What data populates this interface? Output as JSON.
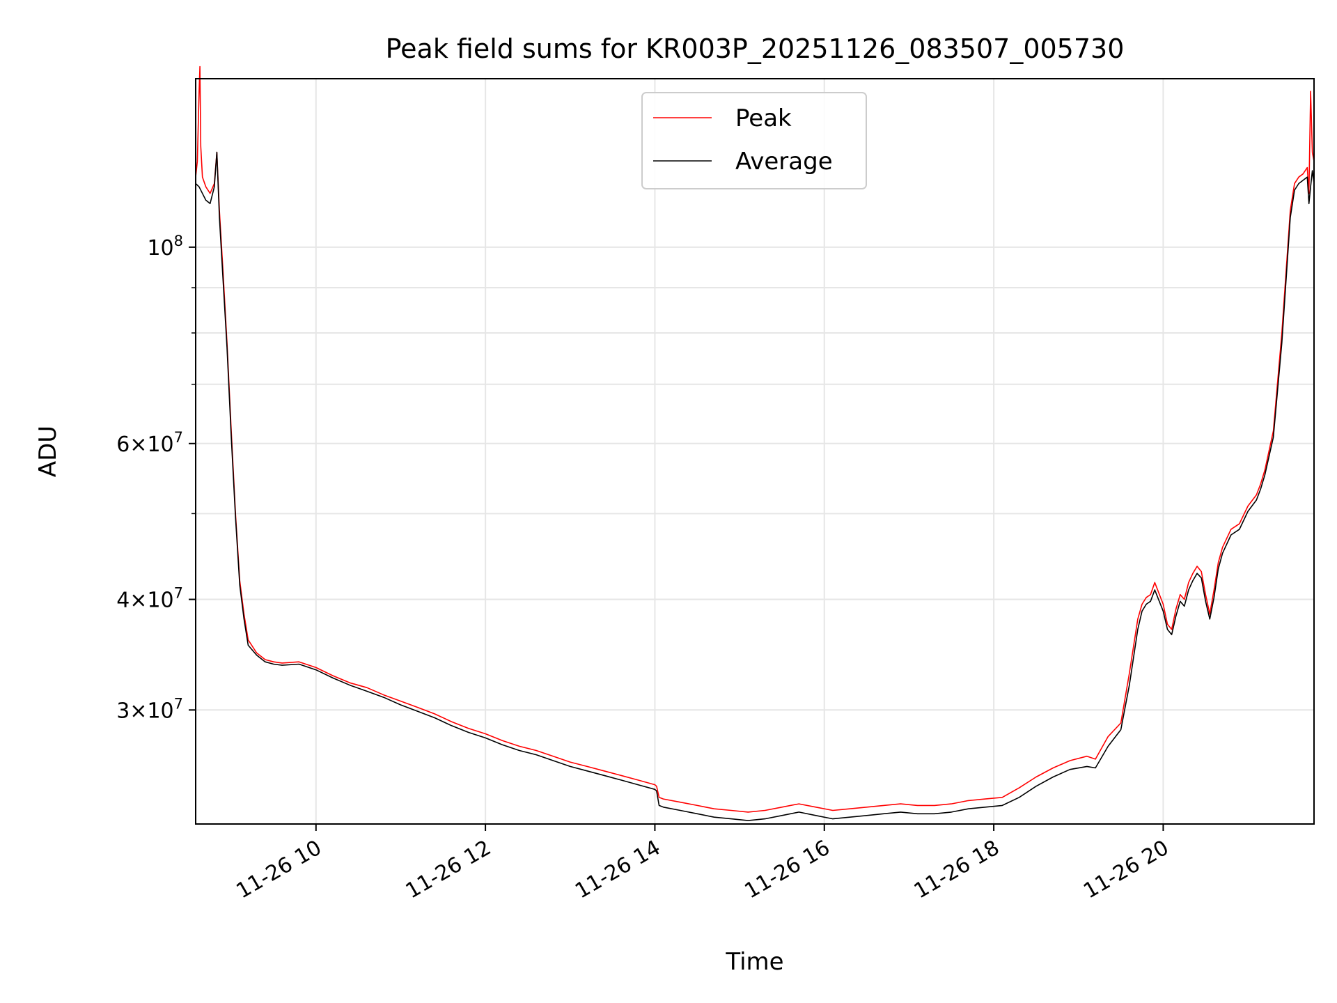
{
  "chart_data": {
    "type": "line",
    "title": "Peak field sums for KR003P_20251126_083507_005730",
    "xlabel": "Time",
    "ylabel": "ADU",
    "yscale": "log",
    "ylim": [
      22300000,
      155000000
    ],
    "xlim_hours": [
      8.58,
      21.78
    ],
    "grid": true,
    "legend_position": "upper center",
    "x_ticks": [
      {
        "hour": 10,
        "label": "11-26 10"
      },
      {
        "hour": 12,
        "label": "11-26 12"
      },
      {
        "hour": 14,
        "label": "11-26 14"
      },
      {
        "hour": 16,
        "label": "11-26 16"
      },
      {
        "hour": 18,
        "label": "11-26 18"
      },
      {
        "hour": 20,
        "label": "11-26 20"
      }
    ],
    "y_major_ticks": [
      {
        "value": 100000000,
        "base": "10",
        "exp": "8",
        "prefix": ""
      },
      {
        "value": 60000000,
        "base": "10",
        "exp": "7",
        "prefix": "6×"
      },
      {
        "value": 40000000,
        "base": "10",
        "exp": "7",
        "prefix": "4×"
      },
      {
        "value": 30000000,
        "base": "10",
        "exp": "7",
        "prefix": "3×"
      }
    ],
    "y_minor_ticks": [
      90000000,
      80000000,
      70000000,
      50000000
    ],
    "series": [
      {
        "name": "Peak",
        "color": "#ff0000",
        "x_hours": [
          8.58,
          8.6,
          8.62,
          8.63,
          8.64,
          8.66,
          8.7,
          8.75,
          8.8,
          8.83,
          8.86,
          8.9,
          8.95,
          9.0,
          9.05,
          9.1,
          9.15,
          9.2,
          9.3,
          9.4,
          9.5,
          9.6,
          9.8,
          10.0,
          10.2,
          10.4,
          10.6,
          10.8,
          11.0,
          11.2,
          11.4,
          11.6,
          11.8,
          12.0,
          12.2,
          12.4,
          12.6,
          12.8,
          13.0,
          13.2,
          13.4,
          13.6,
          13.8,
          14.0,
          14.02,
          14.05,
          14.1,
          14.3,
          14.5,
          14.7,
          14.9,
          15.1,
          15.3,
          15.5,
          15.7,
          15.9,
          16.1,
          16.3,
          16.5,
          16.7,
          16.9,
          17.1,
          17.3,
          17.5,
          17.7,
          17.9,
          18.1,
          18.3,
          18.5,
          18.7,
          18.9,
          19.1,
          19.2,
          19.35,
          19.5,
          19.6,
          19.7,
          19.75,
          19.8,
          19.85,
          19.9,
          20.0,
          20.05,
          20.1,
          20.15,
          20.2,
          20.25,
          20.3,
          20.35,
          20.4,
          20.45,
          20.5,
          20.55,
          20.6,
          20.65,
          20.7,
          20.8,
          20.9,
          21.0,
          21.1,
          21.15,
          21.2,
          21.3,
          21.4,
          21.5,
          21.55,
          21.6,
          21.65,
          21.7,
          21.72,
          21.74,
          21.76,
          21.78
        ],
        "values": [
          120000000,
          125000000,
          150000000,
          160000000,
          130000000,
          120000000,
          117000000,
          115000000,
          118000000,
          128000000,
          110000000,
          95000000,
          78000000,
          62000000,
          50000000,
          42000000,
          38500000,
          36000000,
          34800000,
          34200000,
          34000000,
          33900000,
          34000000,
          33500000,
          32800000,
          32200000,
          31800000,
          31200000,
          30700000,
          30200000,
          29700000,
          29100000,
          28600000,
          28200000,
          27700000,
          27300000,
          27000000,
          26600000,
          26200000,
          25900000,
          25600000,
          25300000,
          25000000,
          24700000,
          24600000,
          23900000,
          23800000,
          23600000,
          23400000,
          23200000,
          23100000,
          23000000,
          23100000,
          23300000,
          23500000,
          23300000,
          23100000,
          23200000,
          23300000,
          23400000,
          23500000,
          23400000,
          23400000,
          23500000,
          23700000,
          23800000,
          23900000,
          24500000,
          25200000,
          25800000,
          26300000,
          26600000,
          26400000,
          28000000,
          29000000,
          33000000,
          38000000,
          39500000,
          40200000,
          40500000,
          41800000,
          39500000,
          37500000,
          37000000,
          39000000,
          40500000,
          40000000,
          41800000,
          42800000,
          43600000,
          43000000,
          40500000,
          38500000,
          41000000,
          44000000,
          45800000,
          48000000,
          48700000,
          51000000,
          52500000,
          54000000,
          56000000,
          62000000,
          80000000,
          110000000,
          118000000,
          120000000,
          121000000,
          123000000,
          115000000,
          150000000,
          128000000,
          125000000
        ]
      },
      {
        "name": "Average",
        "color": "#000000",
        "x_hours": [
          8.58,
          8.62,
          8.66,
          8.7,
          8.75,
          8.8,
          8.83,
          8.86,
          8.9,
          8.95,
          9.0,
          9.05,
          9.1,
          9.15,
          9.2,
          9.3,
          9.4,
          9.5,
          9.6,
          9.8,
          10.0,
          10.2,
          10.4,
          10.6,
          10.8,
          11.0,
          11.2,
          11.4,
          11.6,
          11.8,
          12.0,
          12.2,
          12.4,
          12.6,
          12.8,
          13.0,
          13.2,
          13.4,
          13.6,
          13.8,
          14.0,
          14.02,
          14.05,
          14.1,
          14.3,
          14.5,
          14.7,
          14.9,
          15.1,
          15.3,
          15.5,
          15.7,
          15.9,
          16.1,
          16.3,
          16.5,
          16.7,
          16.9,
          17.1,
          17.3,
          17.5,
          17.7,
          17.9,
          18.1,
          18.3,
          18.5,
          18.7,
          18.9,
          19.1,
          19.2,
          19.35,
          19.5,
          19.6,
          19.7,
          19.75,
          19.8,
          19.85,
          19.9,
          20.0,
          20.05,
          20.1,
          20.15,
          20.2,
          20.25,
          20.3,
          20.35,
          20.4,
          20.45,
          20.5,
          20.55,
          20.6,
          20.65,
          20.7,
          20.8,
          20.9,
          21.0,
          21.1,
          21.15,
          21.2,
          21.3,
          21.4,
          21.5,
          21.55,
          21.6,
          21.65,
          21.7,
          21.72,
          21.74,
          21.76,
          21.78
        ],
        "values": [
          118000000,
          117000000,
          115000000,
          113000000,
          112000000,
          117000000,
          128000000,
          108000000,
          93000000,
          77000000,
          61000000,
          49500000,
          41500000,
          38000000,
          35500000,
          34600000,
          34000000,
          33800000,
          33700000,
          33800000,
          33300000,
          32600000,
          32000000,
          31500000,
          31000000,
          30400000,
          29900000,
          29400000,
          28800000,
          28300000,
          27900000,
          27400000,
          27000000,
          26700000,
          26300000,
          25900000,
          25600000,
          25300000,
          25000000,
          24700000,
          24400000,
          24300000,
          23400000,
          23300000,
          23100000,
          22900000,
          22700000,
          22600000,
          22500000,
          22600000,
          22800000,
          23000000,
          22800000,
          22600000,
          22700000,
          22800000,
          22900000,
          23000000,
          22900000,
          22900000,
          23000000,
          23200000,
          23300000,
          23400000,
          23900000,
          24600000,
          25200000,
          25700000,
          25900000,
          25800000,
          27300000,
          28500000,
          32000000,
          37000000,
          38800000,
          39500000,
          39800000,
          41000000,
          38800000,
          37000000,
          36500000,
          38300000,
          39800000,
          39300000,
          41000000,
          42000000,
          42800000,
          42300000,
          39800000,
          38000000,
          40200000,
          43300000,
          45100000,
          47300000,
          48000000,
          50300000,
          51800000,
          53300000,
          55300000,
          61000000,
          78000000,
          108000000,
          116000000,
          118000000,
          119000000,
          120000000,
          112000000,
          117000000,
          122000000,
          118000000
        ]
      }
    ]
  }
}
